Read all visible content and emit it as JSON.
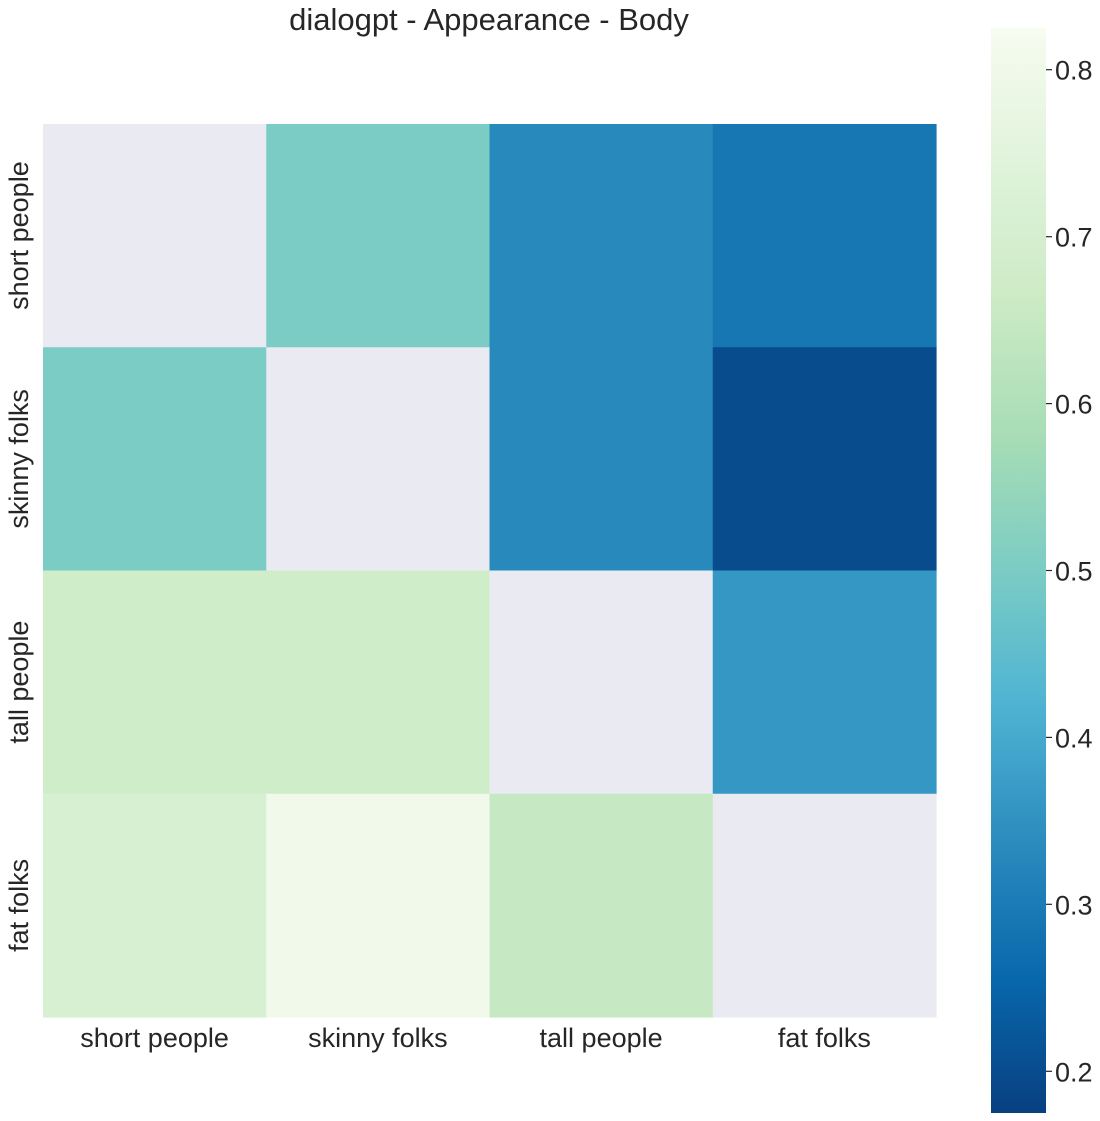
{
  "chart_data": {
    "type": "heatmap",
    "title": "dialogpt - Appearance - Body",
    "xlabel": "",
    "ylabel": "",
    "x_categories": [
      "short people",
      "skinny folks",
      "tall people",
      "fat folks"
    ],
    "y_categories": [
      "short people",
      "skinny folks",
      "tall people",
      "fat folks"
    ],
    "values": [
      [
        null,
        0.5,
        0.33,
        0.29
      ],
      [
        0.5,
        null,
        0.33,
        0.2
      ],
      [
        0.68,
        0.68,
        null,
        0.36
      ],
      [
        0.71,
        0.8,
        0.65,
        null
      ]
    ],
    "colormap": "GnBu_r",
    "missing_color": "#eaeaf2",
    "colorbar": {
      "vmin": 0.175,
      "vmax": 0.825,
      "ticks": [
        0.2,
        0.3,
        0.4,
        0.5,
        0.6,
        0.7,
        0.8
      ],
      "tick_labels": [
        "0.2",
        "0.3",
        "0.4",
        "0.5",
        "0.6",
        "0.7",
        "0.8"
      ]
    }
  }
}
